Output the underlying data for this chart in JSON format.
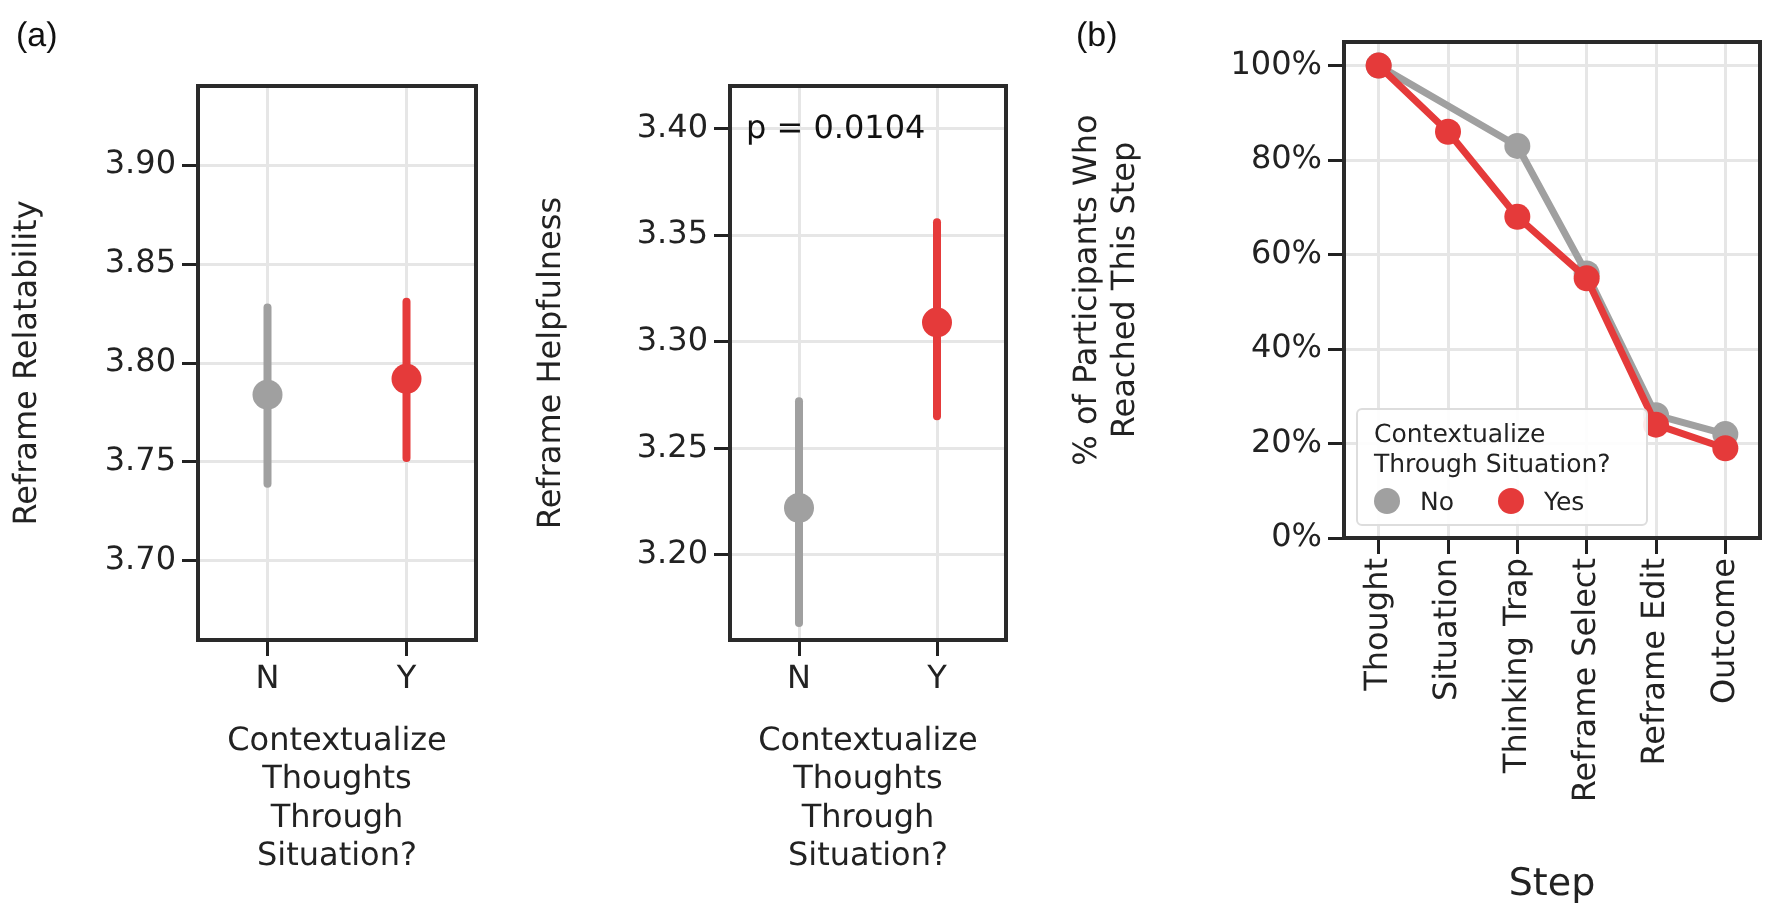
{
  "chart_data": [
    {
      "type": "scatter",
      "title": "(a)",
      "xlabel": "Contextualize Thoughts Through Situation?",
      "ylabel": "Reframe Relatability",
      "categories": [
        "N",
        "Y"
      ],
      "values": [
        3.784,
        3.792
      ],
      "colors": [
        "#a0a0a0",
        "#e53a3a"
      ],
      "errors": [
        [
          3.739,
          3.828
        ],
        [
          3.752,
          3.831
        ]
      ],
      "ylim": [
        3.66,
        3.94
      ],
      "yticks": [
        {
          "value": 3.7,
          "label": "3.70"
        },
        {
          "value": 3.75,
          "label": "3.75"
        },
        {
          "value": 3.8,
          "label": "3.80"
        },
        {
          "value": 3.85,
          "label": "3.85"
        },
        {
          "value": 3.9,
          "label": "3.90"
        }
      ],
      "grid": true,
      "marker": "circle"
    },
    {
      "type": "scatter",
      "xlabel": "Contextualize Thoughts Through Situation?",
      "ylabel": "Reframe Helpfulness",
      "categories": [
        "N",
        "Y"
      ],
      "values": [
        3.222,
        3.309
      ],
      "colors": [
        "#a0a0a0",
        "#e53a3a"
      ],
      "errors": [
        [
          3.168,
          3.272
        ],
        [
          3.265,
          3.356
        ]
      ],
      "ylim": [
        3.16,
        3.42
      ],
      "yticks": [
        {
          "value": 3.2,
          "label": "3.20"
        },
        {
          "value": 3.25,
          "label": "3.25"
        },
        {
          "value": 3.3,
          "label": "3.30"
        },
        {
          "value": 3.35,
          "label": "3.35"
        },
        {
          "value": 3.4,
          "label": "3.40"
        }
      ],
      "annotations": [
        "p = 0.0104"
      ],
      "grid": true,
      "marker": "circle"
    },
    {
      "type": "line",
      "title": "(b)",
      "xlabel": "Step",
      "ylabel": "% of Participants Who Reached This Step",
      "legend_title": "Contextualize Through Situation?",
      "categories": [
        "Thought",
        "Situation",
        "Thinking Trap",
        "Reframe Select",
        "Reframe Edit",
        "Outcome"
      ],
      "series": [
        {
          "name": "No",
          "color": "#a0a0a0",
          "values": [
            100,
            null,
            83,
            56,
            26,
            22
          ]
        },
        {
          "name": "Yes",
          "color": "#e53a3a",
          "values": [
            100,
            86,
            68,
            55,
            24,
            19
          ]
        }
      ],
      "ylim": [
        0,
        105
      ],
      "yticks": [
        {
          "value": 0,
          "label": "0%"
        },
        {
          "value": 20,
          "label": "20%"
        },
        {
          "value": 40,
          "label": "40%"
        },
        {
          "value": 60,
          "label": "60%"
        },
        {
          "value": 80,
          "label": "80%"
        },
        {
          "value": 100,
          "label": "100%"
        }
      ],
      "grid": true,
      "legend": "bottom left",
      "marker": "circle",
      "line_style": "solid"
    }
  ]
}
